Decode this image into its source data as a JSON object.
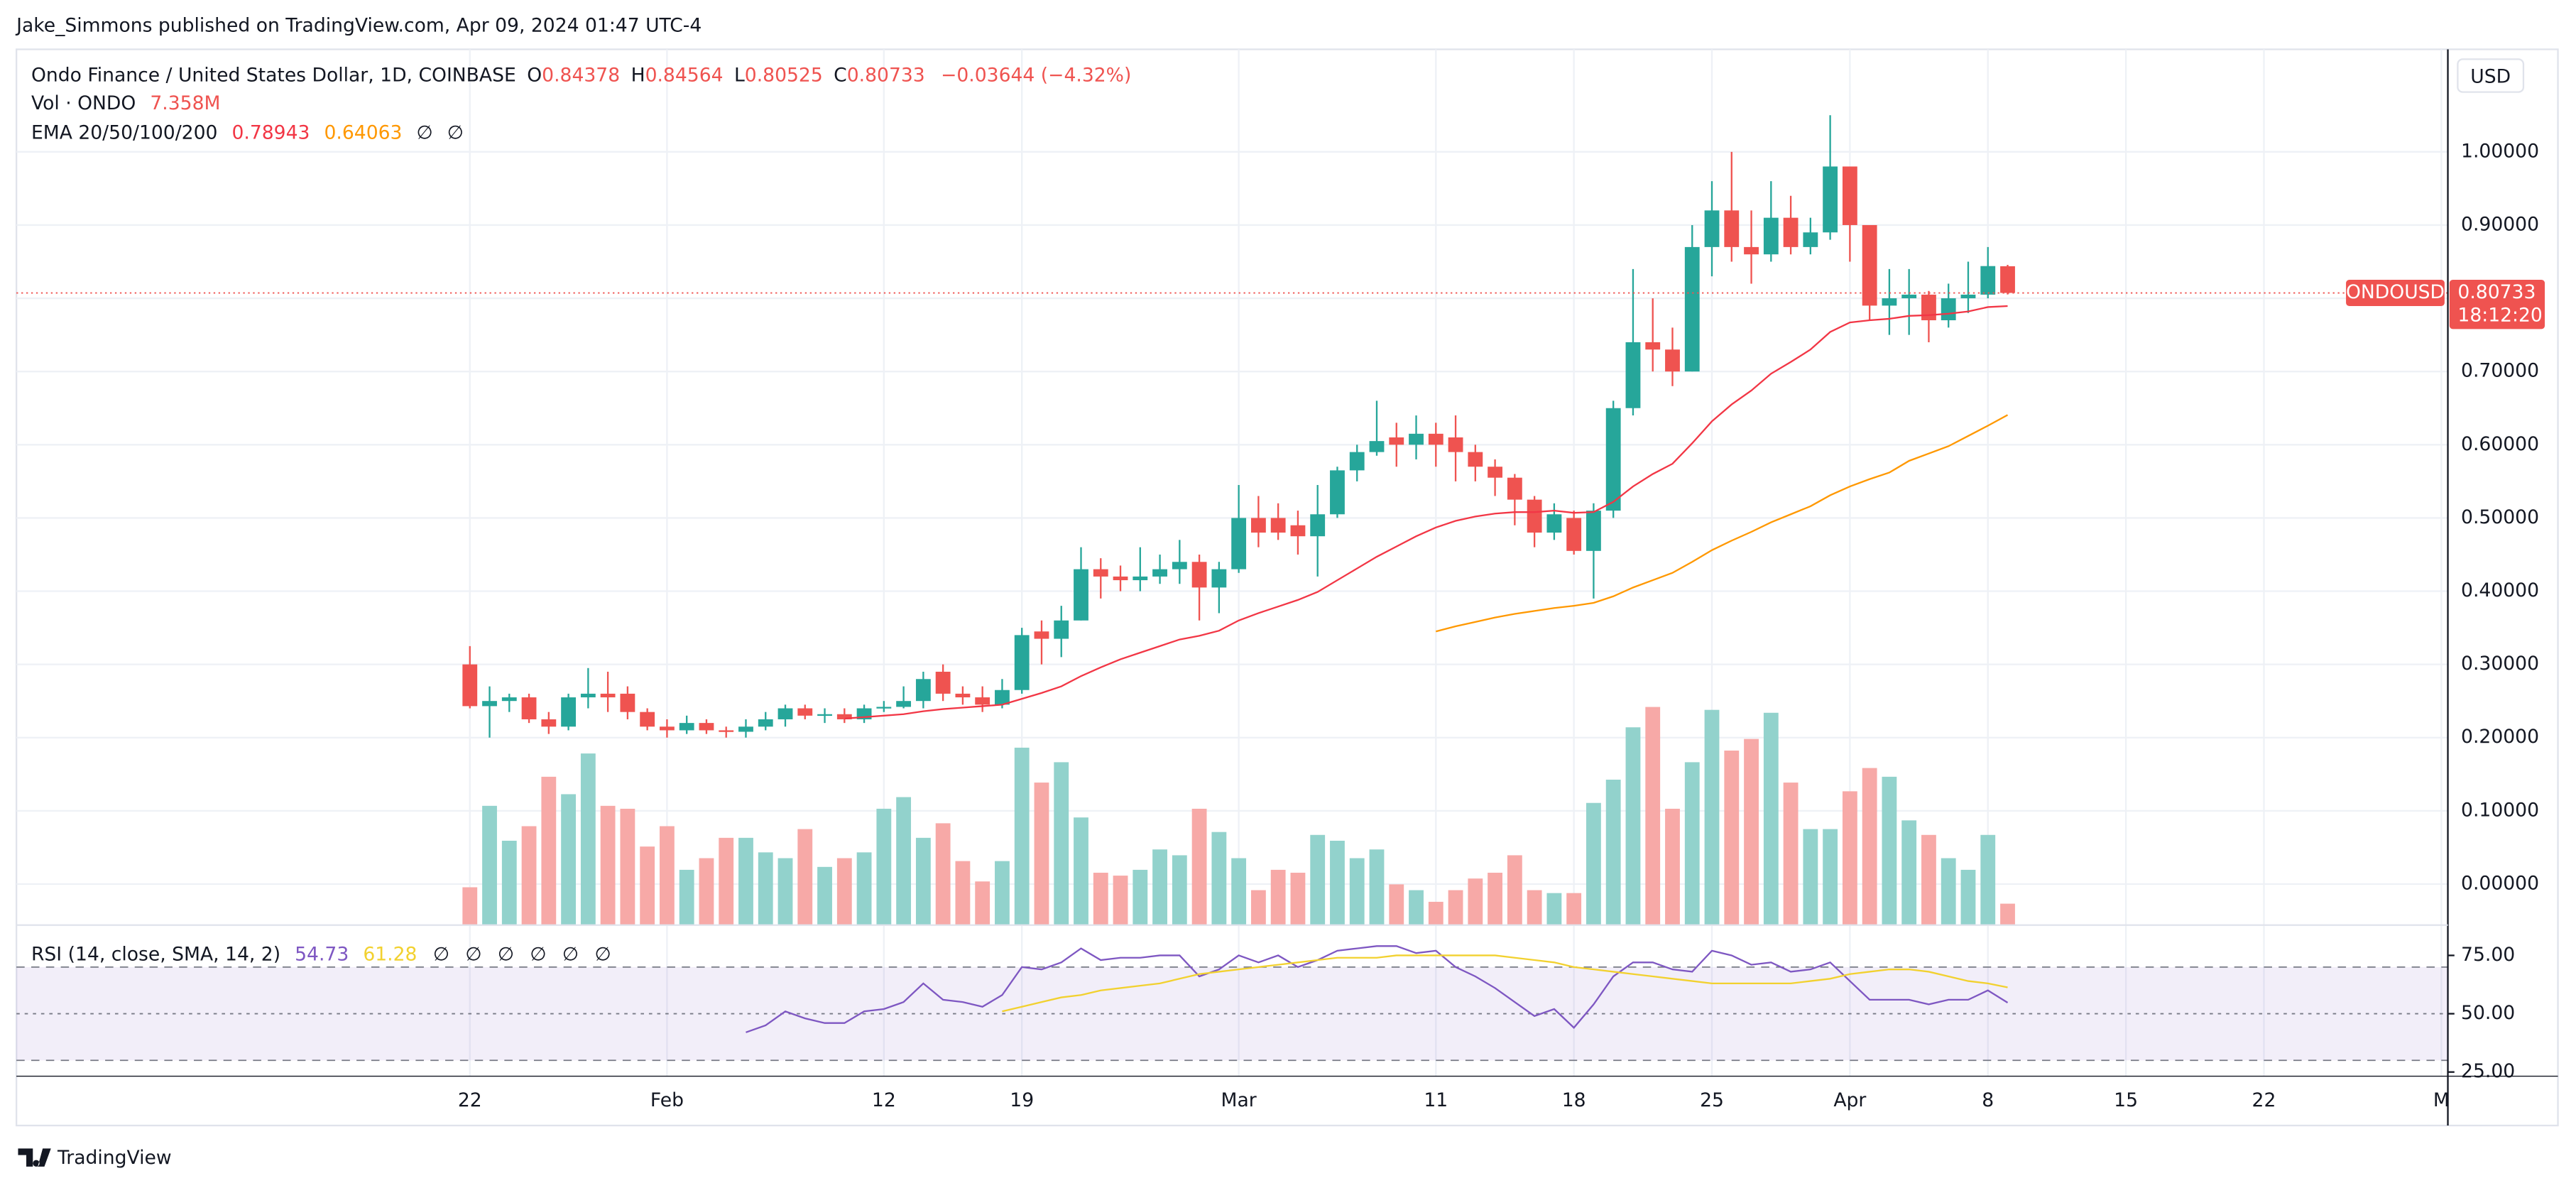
{
  "header": {
    "publisher": "Jake_Simmons published on TradingView.com, Apr 09, 2024 01:47 UTC-4",
    "brand": "TradingView"
  },
  "chart_data": {
    "type": "candlestick",
    "symbol": "Ondo Finance / United States Dollar, 1D, COINBASE",
    "ohlc_letters": [
      "O",
      "H",
      "L",
      "C"
    ],
    "change_label": "−0.03644 (−4.32%)",
    "currency": "USD",
    "ticker_tag": "ONDOUSD",
    "countdown": "18:12:20",
    "up_color": "#26a69a",
    "down_color": "#ef5350",
    "grid": true,
    "xlim": [
      -23,
      100.33
    ],
    "xticks": [
      {
        "value": 0,
        "label": "22"
      },
      {
        "value": 10,
        "label": "Feb"
      },
      {
        "value": 21,
        "label": "12"
      },
      {
        "value": 28,
        "label": "19"
      },
      {
        "value": 39,
        "label": "Mar"
      },
      {
        "value": 49,
        "label": "11"
      },
      {
        "value": 56,
        "label": "18"
      },
      {
        "value": 63,
        "label": "25"
      },
      {
        "value": 70,
        "label": "Apr"
      },
      {
        "value": 77,
        "label": "8"
      },
      {
        "value": 84,
        "label": "15"
      },
      {
        "value": 91,
        "label": "22"
      },
      {
        "value": 100,
        "label": "M"
      }
    ],
    "ylim": [
      -0.056,
      1.14
    ],
    "yticks": [
      {
        "value": 0,
        "label": "0.00000"
      },
      {
        "value": 0.1,
        "label": "0.10000"
      },
      {
        "value": 0.2,
        "label": "0.20000"
      },
      {
        "value": 0.3,
        "label": "0.30000"
      },
      {
        "value": 0.4,
        "label": "0.40000"
      },
      {
        "value": 0.5,
        "label": "0.50000"
      },
      {
        "value": 0.6,
        "label": "0.60000"
      },
      {
        "value": 0.7,
        "label": "0.70000"
      },
      {
        "value": 0.8,
        "label": "0.80000"
      },
      {
        "value": 0.9,
        "label": "0.90000"
      },
      {
        "value": 1.0,
        "label": "1.00000"
      }
    ],
    "open": [
      0.3,
      0.243,
      0.25,
      0.255,
      0.225,
      0.215,
      0.255,
      0.26,
      0.26,
      0.235,
      0.215,
      0.21,
      0.22,
      0.21,
      0.208,
      0.215,
      0.225,
      0.24,
      0.23,
      0.232,
      0.225,
      0.24,
      0.242,
      0.25,
      0.29,
      0.26,
      0.255,
      0.245,
      0.265,
      0.345,
      0.335,
      0.36,
      0.43,
      0.42,
      0.415,
      0.42,
      0.43,
      0.44,
      0.405,
      0.43,
      0.5,
      0.5,
      0.49,
      0.475,
      0.505,
      0.565,
      0.59,
      0.61,
      0.6,
      0.615,
      0.61,
      0.59,
      0.57,
      0.555,
      0.525,
      0.48,
      0.5,
      0.455,
      0.51,
      0.65,
      0.74,
      0.73,
      0.7,
      0.87,
      0.92,
      0.87,
      0.86,
      0.91,
      0.87,
      0.89,
      0.98,
      0.9,
      0.79,
      0.8,
      0.805,
      0.77,
      0.8,
      0.805,
      0.84378
    ],
    "high": [
      0.325,
      0.27,
      0.26,
      0.26,
      0.235,
      0.26,
      0.295,
      0.29,
      0.27,
      0.24,
      0.225,
      0.23,
      0.225,
      0.215,
      0.225,
      0.235,
      0.245,
      0.245,
      0.24,
      0.24,
      0.245,
      0.25,
      0.27,
      0.29,
      0.3,
      0.27,
      0.27,
      0.28,
      0.35,
      0.36,
      0.38,
      0.46,
      0.445,
      0.435,
      0.46,
      0.45,
      0.47,
      0.45,
      0.44,
      0.545,
      0.53,
      0.52,
      0.51,
      0.545,
      0.57,
      0.6,
      0.66,
      0.63,
      0.64,
      0.63,
      0.64,
      0.6,
      0.58,
      0.56,
      0.53,
      0.52,
      0.51,
      0.52,
      0.66,
      0.84,
      0.8,
      0.76,
      0.9,
      0.96,
      1.0,
      0.92,
      0.96,
      0.94,
      0.91,
      1.05,
      0.98,
      0.9,
      0.84,
      0.84,
      0.81,
      0.82,
      0.85,
      0.87,
      0.84564
    ],
    "low": [
      0.24,
      0.2,
      0.235,
      0.22,
      0.205,
      0.21,
      0.24,
      0.235,
      0.225,
      0.21,
      0.2,
      0.205,
      0.205,
      0.2,
      0.2,
      0.21,
      0.215,
      0.225,
      0.22,
      0.22,
      0.22,
      0.235,
      0.24,
      0.24,
      0.25,
      0.245,
      0.235,
      0.24,
      0.26,
      0.3,
      0.31,
      0.36,
      0.39,
      0.4,
      0.4,
      0.41,
      0.41,
      0.36,
      0.37,
      0.425,
      0.46,
      0.47,
      0.45,
      0.42,
      0.5,
      0.55,
      0.585,
      0.57,
      0.58,
      0.57,
      0.55,
      0.55,
      0.53,
      0.49,
      0.46,
      0.47,
      0.45,
      0.39,
      0.5,
      0.64,
      0.7,
      0.68,
      0.7,
      0.83,
      0.85,
      0.82,
      0.85,
      0.86,
      0.86,
      0.88,
      0.85,
      0.77,
      0.75,
      0.75,
      0.74,
      0.76,
      0.78,
      0.8,
      0.80525
    ],
    "close": [
      0.243,
      0.25,
      0.255,
      0.225,
      0.215,
      0.255,
      0.26,
      0.255,
      0.235,
      0.215,
      0.21,
      0.22,
      0.21,
      0.208,
      0.215,
      0.225,
      0.24,
      0.23,
      0.232,
      0.225,
      0.24,
      0.242,
      0.25,
      0.28,
      0.26,
      0.255,
      0.245,
      0.265,
      0.34,
      0.335,
      0.36,
      0.43,
      0.42,
      0.415,
      0.42,
      0.43,
      0.44,
      0.405,
      0.43,
      0.5,
      0.48,
      0.48,
      0.475,
      0.505,
      0.565,
      0.59,
      0.605,
      0.6,
      0.615,
      0.6,
      0.59,
      0.57,
      0.555,
      0.525,
      0.48,
      0.505,
      0.455,
      0.51,
      0.65,
      0.74,
      0.73,
      0.7,
      0.87,
      0.92,
      0.87,
      0.86,
      0.91,
      0.87,
      0.89,
      0.98,
      0.9,
      0.79,
      0.8,
      0.805,
      0.77,
      0.8,
      0.805,
      0.844,
      0.80733
    ],
    "volume": {
      "name": "Vol · ONDO",
      "up_color": "#92d2cc",
      "down_color": "#f7a9a7",
      "values": [
        13,
        41,
        29,
        34,
        51,
        45,
        59,
        41,
        40,
        27,
        34,
        19,
        23,
        30,
        30,
        25,
        23,
        33,
        20,
        23,
        25,
        40,
        44,
        30,
        35,
        22,
        15,
        22,
        61,
        49,
        56,
        37,
        18,
        17,
        19,
        26,
        24,
        40,
        32,
        23,
        12,
        19,
        18,
        31,
        29,
        23,
        26,
        14,
        12,
        8,
        12,
        16,
        18,
        24,
        12,
        11,
        11,
        42,
        50,
        68,
        75,
        40,
        56,
        74,
        60,
        64,
        73,
        49,
        33,
        33,
        46,
        54,
        51,
        36,
        31,
        23,
        19,
        31,
        7.358
      ],
      "value_labels": [
        null,
        null,
        null,
        null,
        null,
        null,
        null,
        null,
        null,
        null,
        null,
        null,
        null,
        null,
        null,
        null,
        null,
        null,
        null,
        null,
        null,
        null,
        null,
        null,
        null,
        null,
        null,
        null,
        null,
        null,
        null,
        null,
        null,
        null,
        null,
        null,
        null,
        null,
        null,
        null,
        null,
        null,
        null,
        null,
        null,
        null,
        null,
        null,
        null,
        null,
        null,
        null,
        null,
        null,
        null,
        null,
        null,
        null,
        null,
        null,
        null,
        null,
        null,
        null,
        null,
        null,
        null,
        null,
        null,
        null,
        null,
        null,
        null,
        null,
        null,
        null,
        null,
        null,
        "7.358M"
      ]
    },
    "ema_name": "EMA 20/50/100/200",
    "ema_na": [
      "∅",
      "∅"
    ],
    "series": [
      {
        "name": "EMA 20",
        "color": "#f23645",
        "values": [
          null,
          null,
          null,
          null,
          null,
          null,
          null,
          null,
          null,
          null,
          null,
          null,
          null,
          null,
          null,
          null,
          null,
          null,
          null,
          0.226,
          0.228,
          0.23,
          0.232,
          0.236,
          0.239,
          0.241,
          0.243,
          0.245,
          0.253,
          0.261,
          0.27,
          0.284,
          0.296,
          0.307,
          0.316,
          0.325,
          0.334,
          0.339,
          0.346,
          0.36,
          0.37,
          0.379,
          0.388,
          0.399,
          0.415,
          0.431,
          0.447,
          0.461,
          0.475,
          0.487,
          0.496,
          0.502,
          0.506,
          0.508,
          0.508,
          0.51,
          0.507,
          0.508,
          0.522,
          0.543,
          0.56,
          0.574,
          0.602,
          0.632,
          0.655,
          0.674,
          0.697,
          0.713,
          0.73,
          0.754,
          0.767,
          0.77,
          0.772,
          0.776,
          0.777,
          0.779,
          0.782,
          0.788,
          0.78943
        ]
      },
      {
        "name": "EMA 50",
        "color": "#ff9800",
        "values": [
          null,
          null,
          null,
          null,
          null,
          null,
          null,
          null,
          null,
          null,
          null,
          null,
          null,
          null,
          null,
          null,
          null,
          null,
          null,
          null,
          null,
          null,
          null,
          null,
          null,
          null,
          null,
          null,
          null,
          null,
          null,
          null,
          null,
          null,
          null,
          null,
          null,
          null,
          null,
          null,
          null,
          null,
          null,
          null,
          null,
          null,
          null,
          null,
          null,
          0.345,
          0.352,
          0.358,
          0.364,
          0.369,
          0.373,
          0.377,
          0.38,
          0.384,
          0.393,
          0.405,
          0.415,
          0.425,
          0.44,
          0.456,
          0.469,
          0.481,
          0.494,
          0.505,
          0.516,
          0.531,
          0.543,
          0.553,
          0.562,
          0.578,
          0.588,
          0.598,
          0.612,
          0.626,
          0.64063
        ]
      }
    ],
    "rsi": {
      "name": "RSI (14, close, SMA, 14, 2)",
      "na": [
        "∅",
        "∅",
        "∅",
        "∅",
        "∅",
        "∅"
      ],
      "ylim": [
        23.2,
        86.6
      ],
      "yticks": [
        {
          "value": 75,
          "label": "75.00"
        },
        {
          "value": 50,
          "label": "50.00"
        },
        {
          "value": 25,
          "label": "25.00"
        }
      ],
      "levels": [
        70,
        50,
        30
      ],
      "band_color": "#7e57c2",
      "series": [
        {
          "name": "RSI",
          "color": "#7e57c2",
          "values": [
            null,
            null,
            null,
            null,
            null,
            null,
            null,
            null,
            null,
            null,
            null,
            null,
            null,
            null,
            42,
            45,
            51,
            48,
            46,
            46,
            51,
            52,
            55,
            63,
            56,
            55,
            53,
            58,
            70,
            69,
            72,
            78,
            73,
            74,
            74,
            75,
            75,
            66,
            69,
            75,
            72,
            75,
            70,
            73,
            77,
            78,
            79,
            79,
            76,
            77,
            70,
            66,
            61,
            55,
            49,
            52,
            44,
            54,
            66,
            72,
            72,
            69,
            68,
            77,
            75,
            71,
            72,
            68,
            69,
            72,
            64,
            56,
            56,
            56,
            54,
            56,
            56,
            60,
            54.73
          ]
        },
        {
          "name": "SMA",
          "color": "#f2d12f",
          "values": [
            null,
            null,
            null,
            null,
            null,
            null,
            null,
            null,
            null,
            null,
            null,
            null,
            null,
            null,
            null,
            null,
            null,
            null,
            null,
            null,
            null,
            null,
            null,
            null,
            null,
            null,
            null,
            51,
            53,
            55,
            57,
            58,
            60,
            61,
            62,
            63,
            65,
            67,
            68,
            69,
            70,
            71,
            72,
            73,
            74,
            74,
            74,
            75,
            75,
            75,
            75,
            75,
            75,
            74,
            73,
            72,
            70,
            69,
            68,
            67,
            66,
            65,
            64,
            63,
            63,
            63,
            63,
            63,
            64,
            65,
            67,
            68,
            69,
            69,
            68,
            66,
            64,
            63,
            61.28
          ]
        }
      ]
    }
  }
}
